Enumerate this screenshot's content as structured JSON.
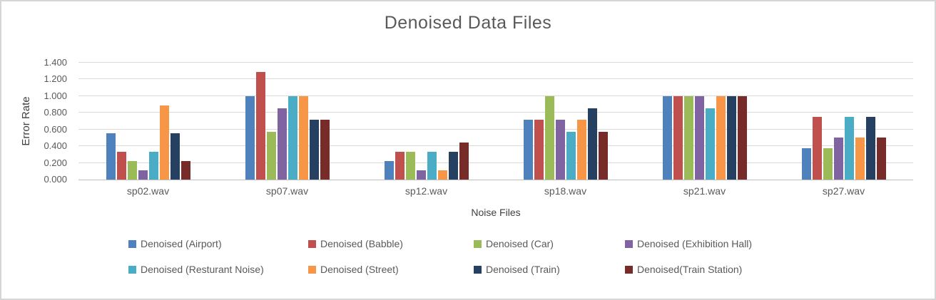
{
  "chart_data": {
    "type": "bar",
    "title": "Denoised Data Files",
    "xlabel": "Noise Files",
    "ylabel": "Error Rate",
    "ylim": [
      0,
      1.4
    ],
    "ytick_labels": [
      "0.000",
      "0.200",
      "0.400",
      "0.600",
      "0.800",
      "1.000",
      "1.200",
      "1.400"
    ],
    "grid": true,
    "legend_position": "bottom",
    "categories": [
      "sp02.wav",
      "sp07.wav",
      "sp12.wav",
      "sp18.wav",
      "sp21.wav",
      "sp27.wav"
    ],
    "series": [
      {
        "name": "Denoised (Airport)",
        "color": "#4F81BD",
        "values": [
          0.556,
          1.0,
          0.222,
          0.714,
          1.0,
          0.375
        ]
      },
      {
        "name": "Denoised (Babble)",
        "color": "#C0504D",
        "values": [
          0.333,
          1.286,
          0.333,
          0.714,
          1.0,
          0.75
        ]
      },
      {
        "name": "Denoised (Car)",
        "color": "#9BBB59",
        "values": [
          0.222,
          0.571,
          0.333,
          1.0,
          1.0,
          0.375
        ]
      },
      {
        "name": "Denoised (Exhibition Hall)",
        "color": "#8064A2",
        "values": [
          0.111,
          0.857,
          0.111,
          0.714,
          1.0,
          0.5
        ]
      },
      {
        "name": "Denoised (Resturant Noise)",
        "color": "#4BACC6",
        "values": [
          0.333,
          1.0,
          0.333,
          0.571,
          0.857,
          0.75
        ]
      },
      {
        "name": "Denoised (Street)",
        "color": "#F79646",
        "values": [
          0.889,
          1.0,
          0.111,
          0.714,
          1.0,
          0.5
        ]
      },
      {
        "name": "Denoised (Train)",
        "color": "#254061",
        "values": [
          0.556,
          0.714,
          0.333,
          0.857,
          1.0,
          0.75
        ]
      },
      {
        "name": "Denoised(Train Station)",
        "color": "#772C2A",
        "values": [
          0.222,
          0.714,
          0.444,
          0.571,
          1.0,
          0.5
        ]
      }
    ]
  }
}
